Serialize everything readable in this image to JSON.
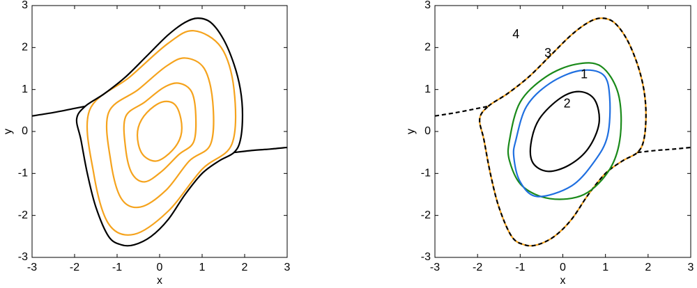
{
  "chart_data": [
    {
      "type": "line",
      "xlim": [
        -3,
        3
      ],
      "ylim": [
        -3,
        3
      ],
      "xticks": [
        -3,
        -2,
        -1,
        0,
        1,
        2,
        3
      ],
      "yticks": [
        -3,
        -2,
        -1,
        0,
        1,
        2,
        3
      ],
      "xlabel": "x",
      "ylabel": "y",
      "series": [
        {
          "color": "#f5a31d",
          "closed": true,
          "x": [
            -1.65,
            -0.7,
            0.2,
            0.8,
            1.45,
            1.75,
            1.7,
            1.0,
            0.2,
            -0.6,
            -1.2,
            -1.55
          ],
          "y": [
            0.5,
            1.3,
            2.1,
            2.4,
            2.0,
            1.0,
            -0.3,
            -0.9,
            -1.9,
            -2.45,
            -2.2,
            -1.0
          ]
        },
        {
          "color": "#f5a31d",
          "closed": true,
          "x": [
            -1.2,
            -0.5,
            0.15,
            0.6,
            1.05,
            1.25,
            1.2,
            0.7,
            0.15,
            -0.45,
            -0.9,
            -1.15
          ],
          "y": [
            0.45,
            1.0,
            1.55,
            1.75,
            1.5,
            0.7,
            -0.3,
            -0.7,
            -1.4,
            -1.8,
            -1.6,
            -0.7
          ]
        },
        {
          "color": "#f5a31d",
          "closed": true,
          "x": [
            -0.8,
            -0.35,
            0.1,
            0.45,
            0.75,
            0.85,
            0.8,
            0.45,
            0.05,
            -0.35,
            -0.65,
            -0.8
          ],
          "y": [
            0.35,
            0.7,
            1.05,
            1.15,
            0.95,
            0.4,
            -0.25,
            -0.55,
            -0.95,
            -1.2,
            -1.0,
            -0.4
          ]
        },
        {
          "color": "#f5a31d",
          "closed": true,
          "x": [
            -0.5,
            -0.3,
            0.05,
            0.35,
            0.5,
            0.5,
            0.3,
            -0.05,
            -0.35,
            -0.5
          ],
          "y": [
            0.1,
            0.45,
            0.7,
            0.65,
            0.3,
            -0.1,
            -0.45,
            -0.7,
            -0.6,
            -0.3
          ]
        },
        {
          "color": "#000000",
          "closed": true,
          "x": [
            -1.75,
            -1.3,
            -0.8,
            -0.3,
            0.2,
            0.6,
            0.9,
            1.2,
            1.5,
            1.75,
            1.9,
            1.95,
            1.9,
            1.75,
            1.4,
            1.0,
            0.6,
            0.2,
            -0.2,
            -0.6,
            -0.9,
            -1.2,
            -1.5,
            -1.7,
            -1.85,
            -1.95
          ],
          "y": [
            0.6,
            0.9,
            1.3,
            1.8,
            2.3,
            2.6,
            2.7,
            2.6,
            2.2,
            1.6,
            1.0,
            0.4,
            -0.2,
            -0.5,
            -0.7,
            -1.0,
            -1.5,
            -2.1,
            -2.5,
            -2.7,
            -2.7,
            -2.5,
            -1.8,
            -1.0,
            -0.2,
            0.3
          ]
        },
        {
          "color": "#000000",
          "x": [
            -3,
            -2.5,
            -2,
            -1.75
          ],
          "y": [
            0.37,
            0.45,
            0.55,
            0.6
          ]
        },
        {
          "color": "#000000",
          "x": [
            1.75,
            2.2,
            2.6,
            3
          ],
          "y": [
            -0.5,
            -0.45,
            -0.42,
            -0.38
          ]
        }
      ]
    },
    {
      "type": "line",
      "xlim": [
        -3,
        3
      ],
      "ylim": [
        -3,
        3
      ],
      "xticks": [
        -3,
        -2,
        -1,
        0,
        1,
        2,
        3
      ],
      "yticks": [
        -3,
        -2,
        -1,
        0,
        1,
        2,
        3
      ],
      "xlabel": "x",
      "ylabel": "y",
      "series": [
        {
          "color": "#f5a31d",
          "closed": true,
          "x": [
            -1.75,
            -1.3,
            -0.8,
            -0.3,
            0.2,
            0.6,
            0.9,
            1.2,
            1.5,
            1.75,
            1.9,
            1.95,
            1.9,
            1.75,
            1.4,
            1.0,
            0.6,
            0.2,
            -0.2,
            -0.6,
            -0.9,
            -1.2,
            -1.5,
            -1.7,
            -1.85,
            -1.95
          ],
          "y": [
            0.6,
            0.9,
            1.3,
            1.8,
            2.3,
            2.6,
            2.7,
            2.6,
            2.2,
            1.6,
            1.0,
            0.4,
            -0.2,
            -0.5,
            -0.7,
            -1.0,
            -1.5,
            -2.1,
            -2.5,
            -2.7,
            -2.7,
            -2.5,
            -1.8,
            -1.0,
            -0.2,
            0.3
          ]
        },
        {
          "color": "#000000",
          "closed": true,
          "dashed": true,
          "x": [
            -1.75,
            -1.3,
            -0.8,
            -0.3,
            0.2,
            0.6,
            0.9,
            1.2,
            1.5,
            1.75,
            1.9,
            1.95,
            1.9,
            1.75,
            1.4,
            1.0,
            0.6,
            0.2,
            -0.2,
            -0.6,
            -0.9,
            -1.2,
            -1.5,
            -1.7,
            -1.85,
            -1.95
          ],
          "y": [
            0.6,
            0.9,
            1.3,
            1.8,
            2.3,
            2.6,
            2.7,
            2.6,
            2.2,
            1.6,
            1.0,
            0.4,
            -0.2,
            -0.5,
            -0.7,
            -1.0,
            -1.5,
            -2.1,
            -2.5,
            -2.7,
            -2.7,
            -2.5,
            -1.8,
            -1.0,
            -0.2,
            0.3
          ]
        },
        {
          "color": "#000000",
          "dashed": true,
          "x": [
            -3,
            -2.5,
            -2,
            -1.75
          ],
          "y": [
            0.37,
            0.45,
            0.55,
            0.6
          ]
        },
        {
          "color": "#000000",
          "dashed": true,
          "x": [
            1.75,
            2.2,
            2.6,
            3
          ],
          "y": [
            -0.5,
            -0.45,
            -0.42,
            -0.38
          ]
        },
        {
          "color": "#1a8a1a",
          "closed": true,
          "x": [
            -1.25,
            -1.0,
            -0.4,
            0.3,
            0.9,
            1.3,
            1.35,
            1.1,
            0.5,
            -0.3,
            -0.95,
            -1.25
          ],
          "y": [
            -0.2,
            0.7,
            1.3,
            1.6,
            1.55,
            0.9,
            -0.1,
            -0.9,
            -1.5,
            -1.6,
            -1.3,
            -0.7
          ]
        },
        {
          "color": "#1f6fe0",
          "closed": true,
          "x": [
            -1.1,
            -0.85,
            -0.3,
            0.4,
            0.95,
            1.1,
            1.05,
            0.75,
            0.2,
            -0.6,
            -1.0,
            -1.15
          ],
          "y": [
            -0.2,
            0.6,
            1.15,
            1.45,
            1.35,
            0.8,
            -0.1,
            -0.7,
            -1.3,
            -1.55,
            -1.2,
            -0.6
          ]
        },
        {
          "color": "#000000",
          "closed": true,
          "x": [
            -0.75,
            -0.55,
            -0.05,
            0.4,
            0.75,
            0.85,
            0.6,
            0.15,
            -0.35,
            -0.7
          ],
          "y": [
            -0.3,
            0.3,
            0.8,
            0.95,
            0.75,
            0.2,
            -0.4,
            -0.8,
            -0.95,
            -0.75
          ]
        }
      ],
      "annotations": [
        {
          "text": "4",
          "x": -1.1,
          "y": 2.3
        },
        {
          "text": "3",
          "x": -0.35,
          "y": 1.85
        },
        {
          "text": "1",
          "x": 0.5,
          "y": 1.35
        },
        {
          "text": "2",
          "x": 0.1,
          "y": 0.65
        }
      ]
    }
  ]
}
